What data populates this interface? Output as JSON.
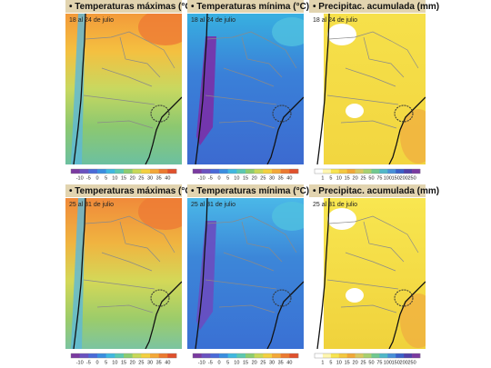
{
  "panels": [
    {
      "title": "• Temperaturas máximas (°C)",
      "date": "18 al 24 de julio"
    },
    {
      "title": "• Temperaturas mínima (°C)",
      "date": "18 al 24 de julio"
    },
    {
      "title": "• Precipitac. acumulada (mm)",
      "date": "18 al 24 de julio"
    },
    {
      "title": "• Temperaturas máximas (°C)",
      "date": "25 al 31 de julio"
    },
    {
      "title": "• Temperaturas mínima (°C)",
      "date": "25 al 31 de julio"
    },
    {
      "title": "• Precipitac. acumulada (mm)",
      "date": "25 al 31 de julio"
    }
  ],
  "legends": {
    "temperature": [
      -10,
      -5,
      0,
      5,
      10,
      15,
      20,
      25,
      30,
      35,
      40
    ],
    "precipitation": [
      1,
      5,
      10,
      15,
      20,
      25,
      50,
      75,
      100,
      150,
      200,
      250
    ]
  }
}
